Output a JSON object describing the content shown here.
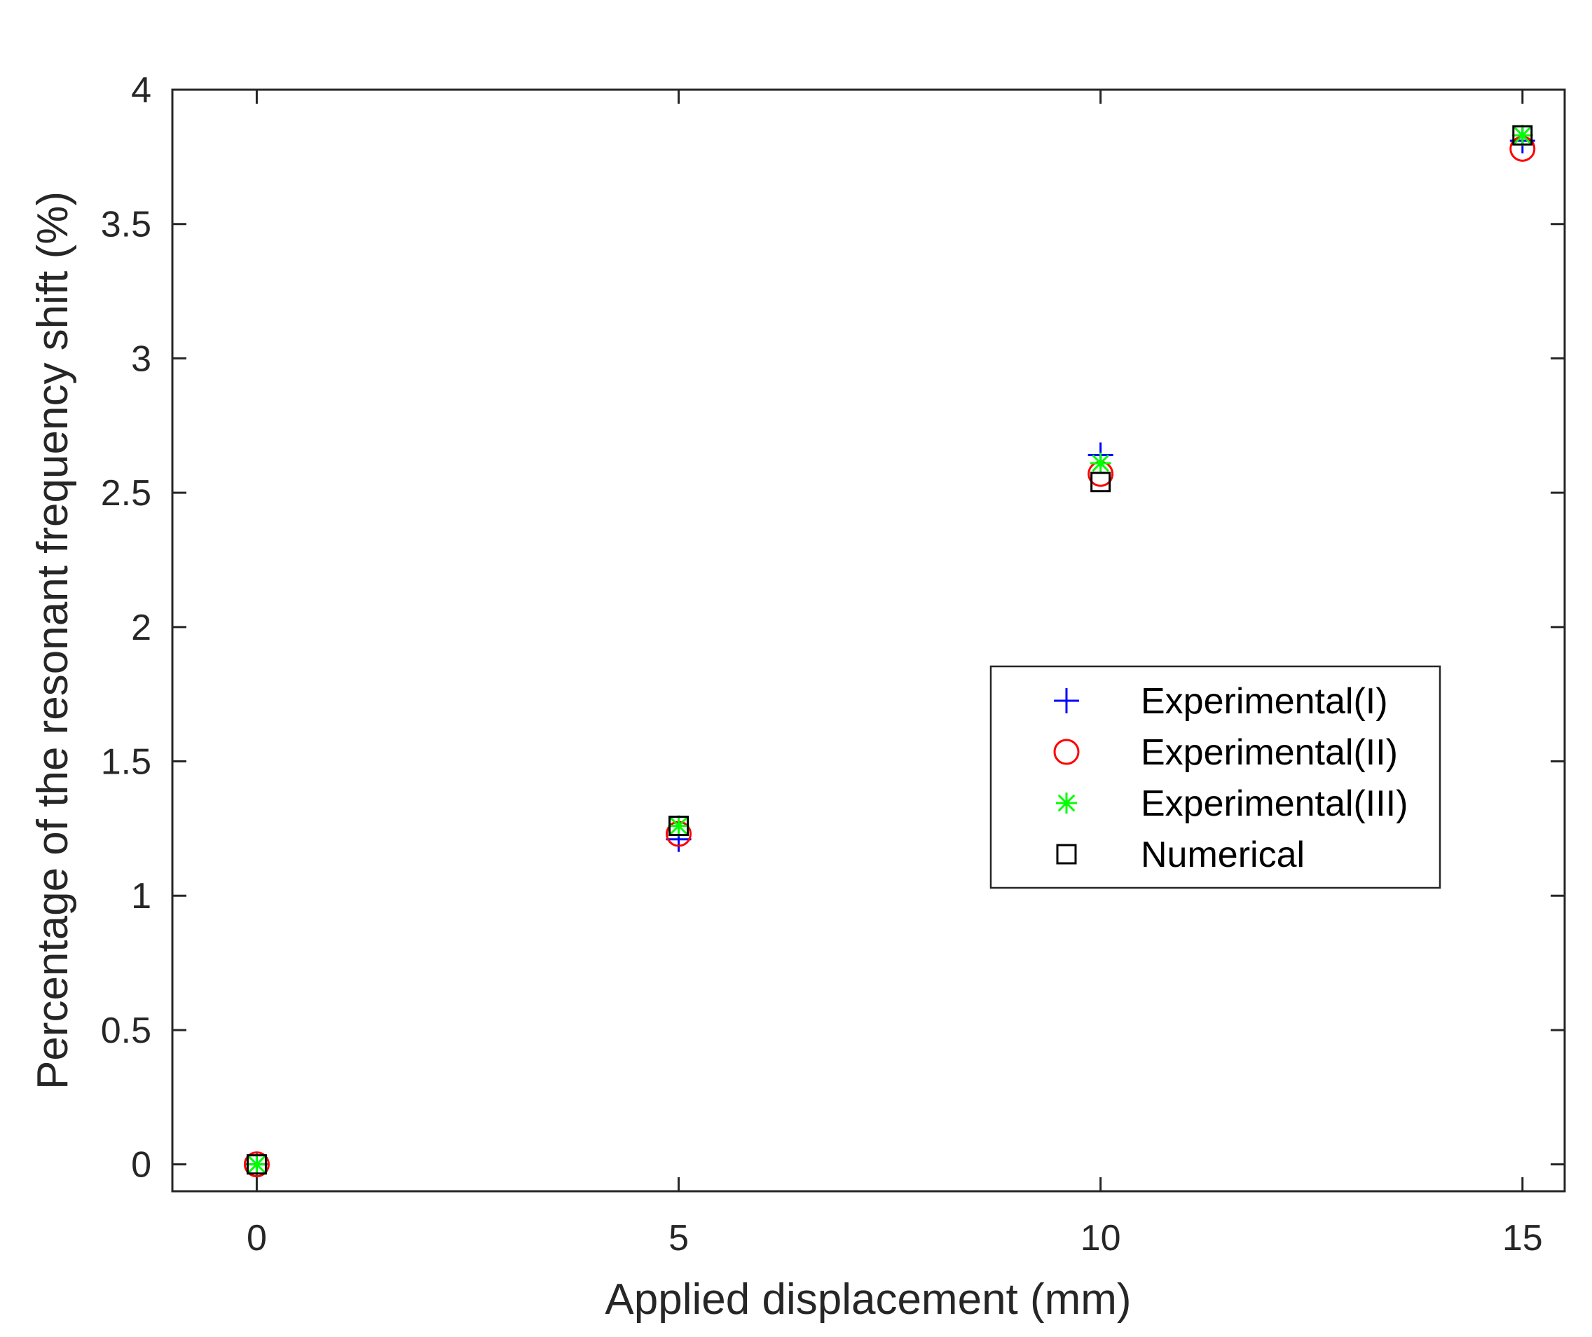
{
  "chart_data": {
    "type": "scatter",
    "xlabel": "Applied displacement (mm)",
    "ylabel": "Percentage of the resonant frequency shift (%)",
    "xlim": [
      -1,
      15.5
    ],
    "ylim": [
      -0.1,
      4
    ],
    "xticks": [
      0,
      5,
      10,
      15
    ],
    "yticks": [
      0,
      0.5,
      1,
      1.5,
      2,
      2.5,
      3,
      3.5,
      4
    ],
    "grid": false,
    "legend_position": "center-right",
    "series": [
      {
        "name": "Experimental(I)",
        "marker": "plus",
        "color": "#0000ff",
        "x": [
          0,
          5,
          10,
          15
        ],
        "y": [
          0,
          1.21,
          2.64,
          3.81
        ]
      },
      {
        "name": "Experimental(II)",
        "marker": "circle",
        "color": "#ff0000",
        "x": [
          0,
          5,
          10,
          15
        ],
        "y": [
          0,
          1.23,
          2.57,
          3.78
        ]
      },
      {
        "name": "Experimental(III)",
        "marker": "asterisk",
        "color": "#00ff00",
        "x": [
          0,
          5,
          10,
          15
        ],
        "y": [
          0,
          1.26,
          2.61,
          3.83
        ]
      },
      {
        "name": "Numerical",
        "marker": "square",
        "color": "#000000",
        "x": [
          0,
          5,
          10,
          15
        ],
        "y": [
          0,
          1.26,
          2.54,
          3.83
        ]
      }
    ]
  }
}
